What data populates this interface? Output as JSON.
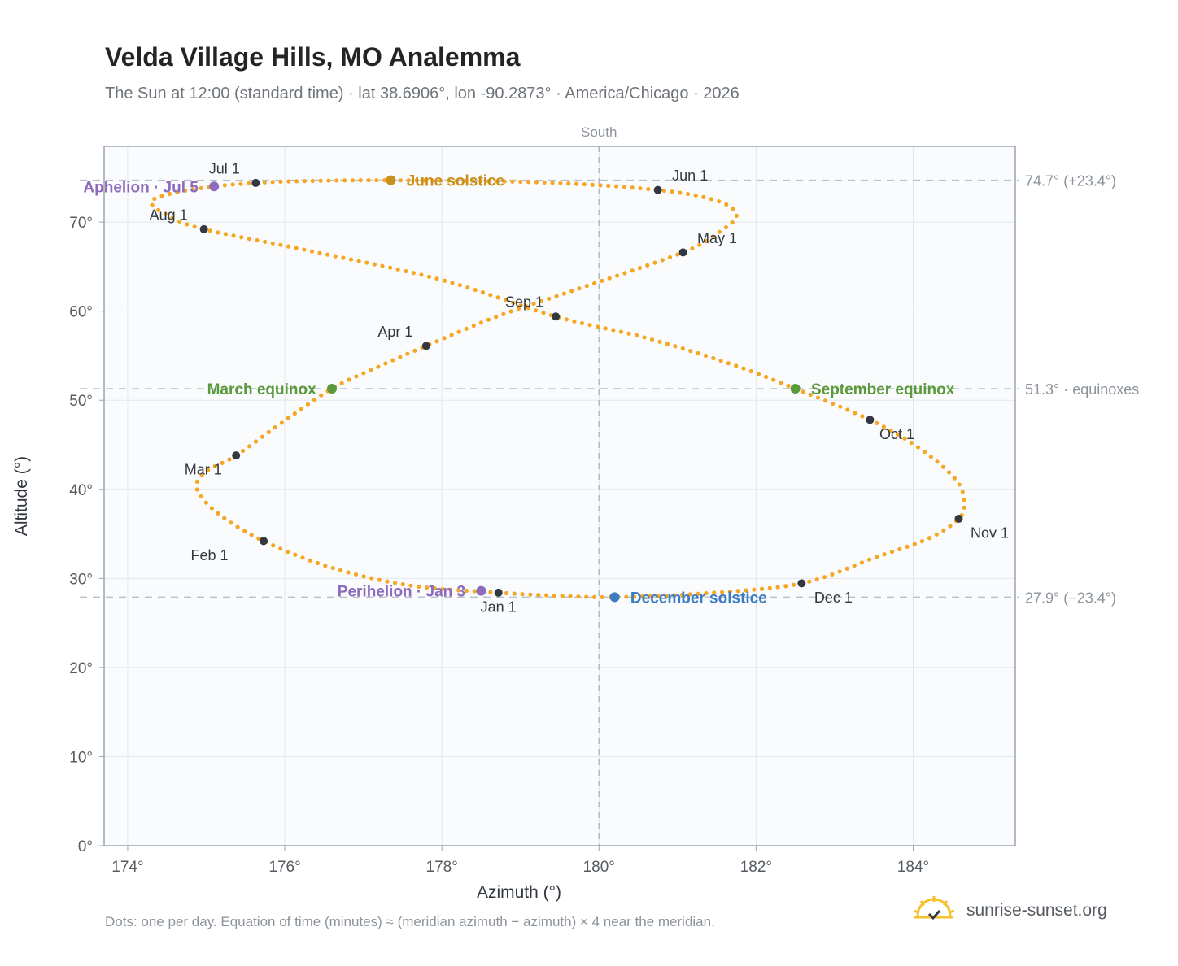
{
  "header": {
    "title": "Velda Village Hills, MO Analemma",
    "subtitle": "The Sun at 12:00 (standard time) · lat 38.6906°, lon -90.2873° · America/Chicago · 2026"
  },
  "footer": {
    "note": "Dots: one per day. Equation of time (minutes) ≈ (meridian azimuth − azimuth) × 4 near the meridian.",
    "brand": "sunrise-sunset.org"
  },
  "chart_data": {
    "type": "scatter",
    "xlabel": "Azimuth (°)",
    "ylabel": "Altitude (°)",
    "xlim": [
      173.7,
      185.3
    ],
    "ylim": [
      0,
      78.5
    ],
    "x_ticks": [
      {
        "value": 174,
        "label": "174°"
      },
      {
        "value": 176,
        "label": "176°"
      },
      {
        "value": 178,
        "label": "178°"
      },
      {
        "value": 180,
        "label": "180°"
      },
      {
        "value": 182,
        "label": "182°"
      },
      {
        "value": 184,
        "label": "184°"
      }
    ],
    "y_ticks": [
      {
        "value": 0,
        "label": "0°"
      },
      {
        "value": 10,
        "label": "10°"
      },
      {
        "value": 20,
        "label": "20°"
      },
      {
        "value": 30,
        "label": "30°"
      },
      {
        "value": 40,
        "label": "40°"
      },
      {
        "value": 50,
        "label": "50°"
      },
      {
        "value": 60,
        "label": "60°"
      },
      {
        "value": 70,
        "label": "70°"
      }
    ],
    "grid": true,
    "meridian": {
      "x": 180,
      "label": "South"
    },
    "reference_lines": [
      {
        "y": 74.7,
        "label": "74.7° (+23.4°)"
      },
      {
        "y": 51.3,
        "label": "51.3° · equinoxes"
      },
      {
        "y": 27.9,
        "label": "27.9° (−23.4°)"
      }
    ],
    "series": [
      {
        "color": "#f5a623",
        "path": [
          {
            "x": 178.72,
            "y": 28.4
          },
          {
            "x": 177.6,
            "y": 29.2
          },
          {
            "x": 176.6,
            "y": 31.2
          },
          {
            "x": 175.73,
            "y": 34.2
          },
          {
            "x": 175.15,
            "y": 37.3
          },
          {
            "x": 174.88,
            "y": 40.1
          },
          {
            "x": 175.0,
            "y": 42.0
          },
          {
            "x": 175.38,
            "y": 43.8
          },
          {
            "x": 175.95,
            "y": 47.4
          },
          {
            "x": 176.6,
            "y": 51.3
          },
          {
            "x": 177.2,
            "y": 53.8
          },
          {
            "x": 177.8,
            "y": 56.1
          },
          {
            "x": 178.7,
            "y": 59.4
          },
          {
            "x": 179.7,
            "y": 62.4
          },
          {
            "x": 181.07,
            "y": 66.6
          },
          {
            "x": 181.55,
            "y": 69.0
          },
          {
            "x": 181.75,
            "y": 70.8
          },
          {
            "x": 181.5,
            "y": 72.4
          },
          {
            "x": 180.75,
            "y": 73.6
          },
          {
            "x": 179.3,
            "y": 74.45
          },
          {
            "x": 177.35,
            "y": 74.7
          },
          {
            "x": 176.2,
            "y": 74.6
          },
          {
            "x": 175.63,
            "y": 74.4
          },
          {
            "x": 175.1,
            "y": 74.0
          },
          {
            "x": 174.6,
            "y": 73.3
          },
          {
            "x": 174.3,
            "y": 72.3
          },
          {
            "x": 174.5,
            "y": 70.8
          },
          {
            "x": 174.97,
            "y": 69.2
          },
          {
            "x": 176.3,
            "y": 66.8
          },
          {
            "x": 178.0,
            "y": 63.5
          },
          {
            "x": 179.45,
            "y": 59.4
          },
          {
            "x": 180.6,
            "y": 57.0
          },
          {
            "x": 181.7,
            "y": 54.0
          },
          {
            "x": 182.5,
            "y": 51.3
          },
          {
            "x": 183.45,
            "y": 47.8
          },
          {
            "x": 184.1,
            "y": 44.5
          },
          {
            "x": 184.55,
            "y": 41.0
          },
          {
            "x": 184.65,
            "y": 38.5
          },
          {
            "x": 184.58,
            "y": 36.7
          },
          {
            "x": 184.2,
            "y": 34.5
          },
          {
            "x": 183.5,
            "y": 32.3
          },
          {
            "x": 182.58,
            "y": 29.45
          },
          {
            "x": 181.3,
            "y": 28.3
          },
          {
            "x": 180.2,
            "y": 27.9
          },
          {
            "x": 179.5,
            "y": 28.05
          },
          {
            "x": 178.72,
            "y": 28.4
          }
        ]
      }
    ],
    "month_markers": [
      {
        "label": "Jan 1",
        "x": 178.72,
        "y": 28.4,
        "lx": 0.0,
        "ly": -1.6,
        "anchor": "middle"
      },
      {
        "label": "Feb 1",
        "x": 175.73,
        "y": 34.2,
        "lx": -0.45,
        "ly": -1.6,
        "anchor": "end"
      },
      {
        "label": "Mar 1",
        "x": 175.38,
        "y": 43.8,
        "lx": -0.18,
        "ly": -1.6,
        "anchor": "end"
      },
      {
        "label": "Apr 1",
        "x": 177.8,
        "y": 56.1,
        "lx": -0.17,
        "ly": 1.6,
        "anchor": "end"
      },
      {
        "label": "May 1",
        "x": 181.07,
        "y": 66.6,
        "lx": 0.18,
        "ly": 1.6,
        "anchor": "start"
      },
      {
        "label": "Jun 1",
        "x": 180.75,
        "y": 73.6,
        "lx": 0.18,
        "ly": 1.6,
        "anchor": "start"
      },
      {
        "label": "Jul 1",
        "x": 175.63,
        "y": 74.4,
        "lx": -0.4,
        "ly": 1.6,
        "anchor": "middle"
      },
      {
        "label": "Aug 1",
        "x": 174.97,
        "y": 69.2,
        "lx": -0.45,
        "ly": 1.6,
        "anchor": "middle"
      },
      {
        "label": "Sep 1",
        "x": 179.45,
        "y": 59.4,
        "lx": -0.4,
        "ly": 1.6,
        "anchor": "middle"
      },
      {
        "label": "Oct 1",
        "x": 183.45,
        "y": 47.8,
        "lx": 0.12,
        "ly": -1.6,
        "anchor": "start"
      },
      {
        "label": "Nov 1",
        "x": 184.58,
        "y": 36.7,
        "lx": 0.15,
        "ly": -1.6,
        "anchor": "start"
      },
      {
        "label": "Dec 1",
        "x": 182.58,
        "y": 29.45,
        "lx": 0.16,
        "ly": -1.6,
        "anchor": "start"
      }
    ],
    "events": [
      {
        "label": "June solstice",
        "x": 177.35,
        "y": 74.7,
        "color": "#c8901a",
        "lx": 0.2,
        "ly": 0.0,
        "anchor": "start"
      },
      {
        "label": "March equinox",
        "x": 176.6,
        "y": 51.3,
        "color": "#5a9a3a",
        "lx": -0.2,
        "ly": 0.0,
        "anchor": "end"
      },
      {
        "label": "September equinox",
        "x": 182.5,
        "y": 51.3,
        "color": "#5a9a3a",
        "lx": 0.2,
        "ly": 0.0,
        "anchor": "start"
      },
      {
        "label": "December solstice",
        "x": 180.2,
        "y": 27.9,
        "color": "#3a7cc4",
        "lx": 0.2,
        "ly": 0.0,
        "anchor": "start"
      },
      {
        "label": "Aphelion · Jul 5",
        "x": 175.1,
        "y": 74.0,
        "color": "#8e6cbd",
        "lx": -0.2,
        "ly": 0.0,
        "anchor": "end"
      },
      {
        "label": "Perihelion · Jan 3",
        "x": 178.5,
        "y": 28.6,
        "color": "#8e6cbd",
        "lx": -0.2,
        "ly": 0.0,
        "anchor": "end"
      }
    ]
  }
}
